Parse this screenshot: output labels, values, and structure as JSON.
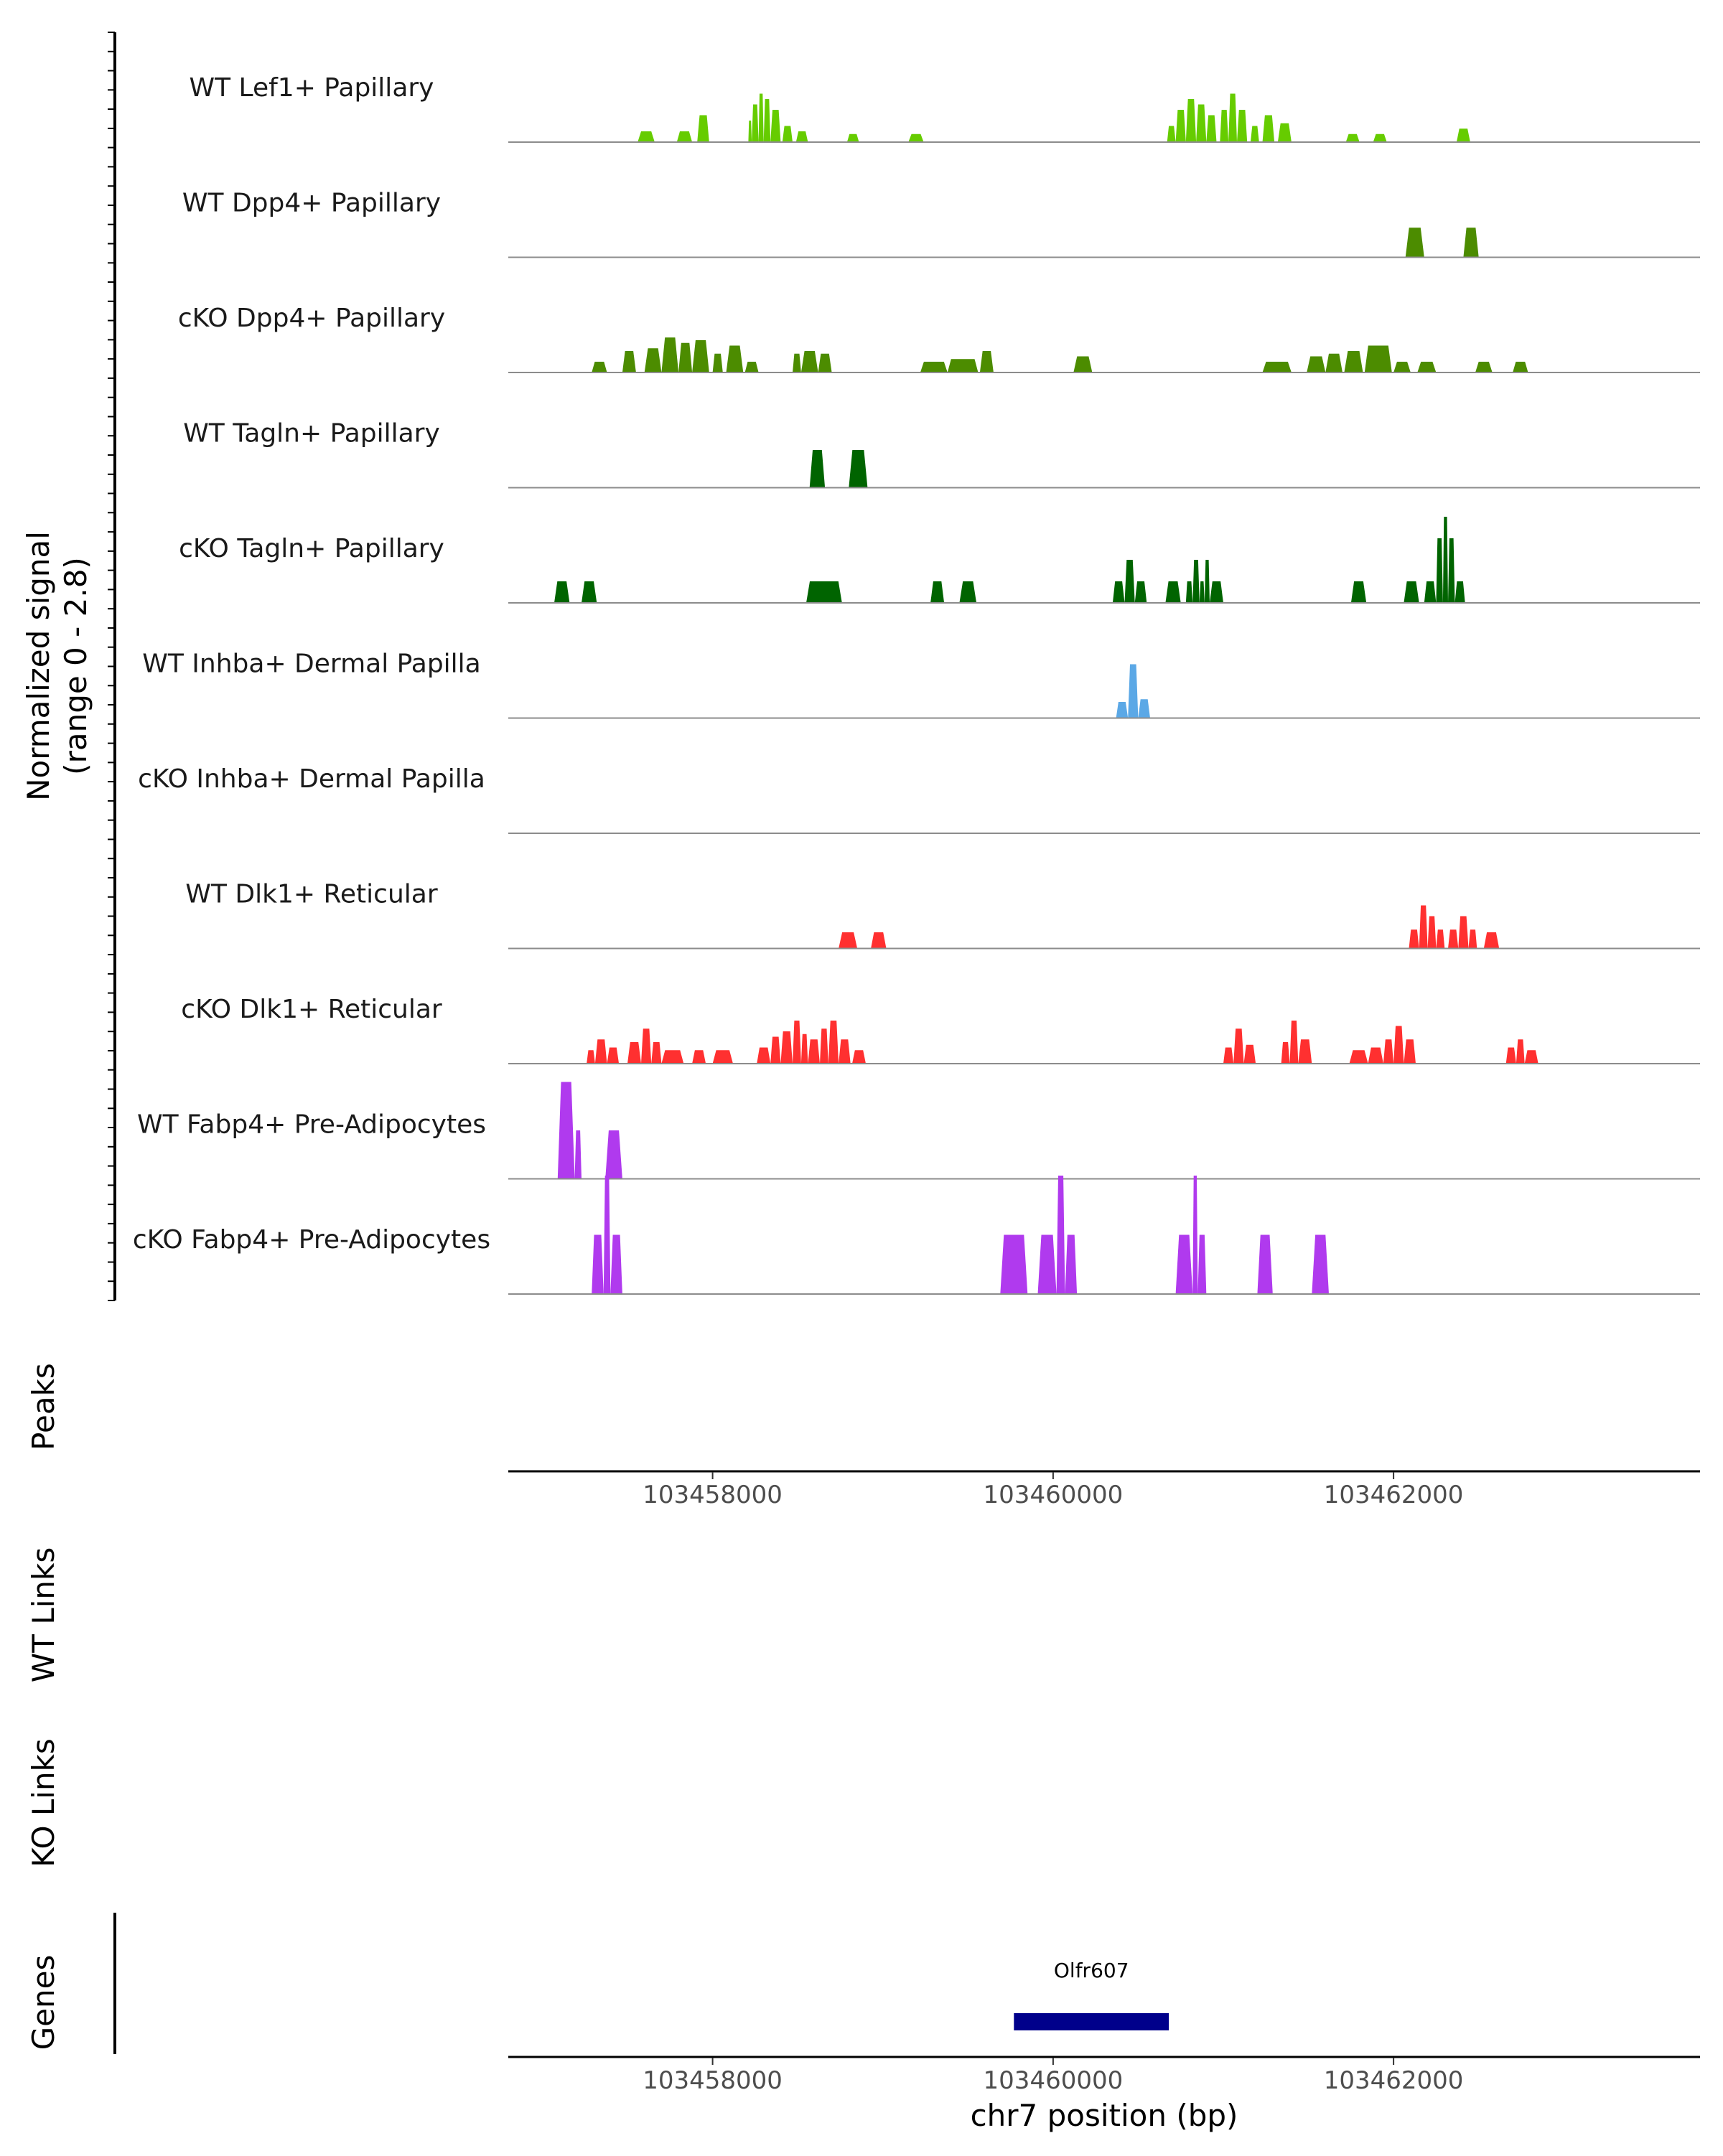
{
  "chart_data": {
    "type": "area",
    "chromosome": "chr7",
    "x_range": [
      103456800,
      103463800
    ],
    "x_ticks": [
      103458000,
      103460000,
      103462000
    ],
    "x_tick_labels": [
      "103458000",
      "103460000",
      "103462000"
    ],
    "xlabel": "chr7 position (bp)",
    "ylabel_line1": "Normalized signal",
    "ylabel_line2": "(range 0 - 2.8)",
    "y_range": [
      0,
      2.8
    ],
    "panel_labels": {
      "peaks": "Peaks",
      "wt_links": "WT Links",
      "ko_links": "KO Links",
      "genes": "Genes"
    },
    "tracks": [
      {
        "name": "WT Lef1+ Papillary",
        "color": "#66CC00",
        "segments": [
          [
            103457560,
            103457660,
            0.2
          ],
          [
            103457790,
            103457880,
            0.2
          ],
          [
            103457910,
            103457980,
            0.5
          ],
          [
            103458210,
            103458230,
            0.4
          ],
          [
            103458230,
            103458270,
            0.7
          ],
          [
            103458270,
            103458300,
            0.9
          ],
          [
            103458300,
            103458340,
            0.8
          ],
          [
            103458340,
            103458400,
            0.6
          ],
          [
            103458410,
            103458470,
            0.3
          ],
          [
            103458490,
            103458560,
            0.2
          ],
          [
            103458790,
            103458860,
            0.15
          ],
          [
            103459150,
            103459240,
            0.15
          ],
          [
            103460670,
            103460720,
            0.3
          ],
          [
            103460720,
            103460780,
            0.6
          ],
          [
            103460780,
            103460840,
            0.8
          ],
          [
            103460840,
            103460900,
            0.7
          ],
          [
            103460900,
            103460960,
            0.5
          ],
          [
            103460980,
            103461030,
            0.6
          ],
          [
            103461030,
            103461080,
            0.9
          ],
          [
            103461080,
            103461140,
            0.6
          ],
          [
            103461160,
            103461210,
            0.3
          ],
          [
            103461230,
            103461300,
            0.5
          ],
          [
            103461320,
            103461400,
            0.35
          ],
          [
            103461720,
            103461800,
            0.15
          ],
          [
            103461880,
            103461960,
            0.15
          ],
          [
            103462370,
            103462450,
            0.25
          ]
        ]
      },
      {
        "name": "WT Dpp4+ Papillary",
        "color": "#4C8C00",
        "segments": [
          [
            103462070,
            103462180,
            0.55
          ],
          [
            103462410,
            103462500,
            0.55
          ]
        ]
      },
      {
        "name": "cKO Dpp4+ Papillary",
        "color": "#4C8C00",
        "segments": [
          [
            103457290,
            103457380,
            0.2
          ],
          [
            103457470,
            103457550,
            0.4
          ],
          [
            103457600,
            103457700,
            0.45
          ],
          [
            103457700,
            103457800,
            0.65
          ],
          [
            103457800,
            103457880,
            0.55
          ],
          [
            103457880,
            103457980,
            0.6
          ],
          [
            103458000,
            103458060,
            0.35
          ],
          [
            103458080,
            103458180,
            0.5
          ],
          [
            103458190,
            103458270,
            0.2
          ],
          [
            103458470,
            103458520,
            0.35
          ],
          [
            103458520,
            103458620,
            0.4
          ],
          [
            103458620,
            103458700,
            0.35
          ],
          [
            103459220,
            103459380,
            0.2
          ],
          [
            103459380,
            103459560,
            0.25
          ],
          [
            103459570,
            103459650,
            0.4
          ],
          [
            103460120,
            103460230,
            0.3
          ],
          [
            103461230,
            103461400,
            0.2
          ],
          [
            103461490,
            103461600,
            0.3
          ],
          [
            103461600,
            103461700,
            0.35
          ],
          [
            103461710,
            103461820,
            0.4
          ],
          [
            103461830,
            103461990,
            0.5
          ],
          [
            103462000,
            103462100,
            0.2
          ],
          [
            103462140,
            103462250,
            0.2
          ],
          [
            103462480,
            103462580,
            0.2
          ],
          [
            103462700,
            103462790,
            0.2
          ]
        ]
      },
      {
        "name": "WT Tagln+ Papillary",
        "color": "#006400",
        "segments": [
          [
            103458570,
            103458660,
            0.7
          ],
          [
            103458800,
            103458910,
            0.7
          ]
        ]
      },
      {
        "name": "cKO Tagln+ Papillary",
        "color": "#006400",
        "segments": [
          [
            103457070,
            103457160,
            0.4
          ],
          [
            103457230,
            103457320,
            0.4
          ],
          [
            103458550,
            103458760,
            0.4
          ],
          [
            103459280,
            103459360,
            0.4
          ],
          [
            103459450,
            103459550,
            0.4
          ],
          [
            103460350,
            103460420,
            0.4
          ],
          [
            103460420,
            103460480,
            0.8
          ],
          [
            103460480,
            103460550,
            0.4
          ],
          [
            103460660,
            103460750,
            0.4
          ],
          [
            103460780,
            103460820,
            0.4
          ],
          [
            103460820,
            103460860,
            0.8
          ],
          [
            103460860,
            103460890,
            0.4
          ],
          [
            103460890,
            103460920,
            0.8
          ],
          [
            103460920,
            103461000,
            0.4
          ],
          [
            103461750,
            103461840,
            0.4
          ],
          [
            103462060,
            103462150,
            0.4
          ],
          [
            103462180,
            103462250,
            0.4
          ],
          [
            103462250,
            103462290,
            1.2
          ],
          [
            103462290,
            103462320,
            1.6
          ],
          [
            103462320,
            103462360,
            1.2
          ],
          [
            103462360,
            103462420,
            0.4
          ]
        ]
      },
      {
        "name": "WT Inhba+ Dermal Papilla",
        "color": "#5BA8E6",
        "segments": [
          [
            103460370,
            103460440,
            0.3
          ],
          [
            103460440,
            103460500,
            1.0
          ],
          [
            103460500,
            103460570,
            0.35
          ]
        ]
      },
      {
        "name": "cKO Inhba+ Dermal Papilla",
        "color": "#5BA8E6",
        "segments": []
      },
      {
        "name": "WT Dlk1+ Reticular",
        "color": "#FF3030",
        "segments": [
          [
            103458740,
            103458850,
            0.3
          ],
          [
            103458930,
            103459020,
            0.3
          ],
          [
            103462090,
            103462150,
            0.35
          ],
          [
            103462150,
            103462200,
            0.8
          ],
          [
            103462200,
            103462250,
            0.6
          ],
          [
            103462250,
            103462300,
            0.35
          ],
          [
            103462320,
            103462380,
            0.35
          ],
          [
            103462380,
            103462440,
            0.6
          ],
          [
            103462440,
            103462490,
            0.35
          ],
          [
            103462530,
            103462620,
            0.3
          ]
        ]
      },
      {
        "name": "cKO Dlk1+ Reticular",
        "color": "#FF3030",
        "segments": [
          [
            103457260,
            103457310,
            0.25
          ],
          [
            103457310,
            103457380,
            0.45
          ],
          [
            103457380,
            103457450,
            0.3
          ],
          [
            103457500,
            103457580,
            0.4
          ],
          [
            103457580,
            103457640,
            0.65
          ],
          [
            103457640,
            103457700,
            0.4
          ],
          [
            103457700,
            103457830,
            0.25
          ],
          [
            103457880,
            103457960,
            0.25
          ],
          [
            103458000,
            103458120,
            0.25
          ],
          [
            103458260,
            103458340,
            0.3
          ],
          [
            103458340,
            103458400,
            0.5
          ],
          [
            103458400,
            103458470,
            0.6
          ],
          [
            103458470,
            103458520,
            0.8
          ],
          [
            103458520,
            103458560,
            0.55
          ],
          [
            103458560,
            103458630,
            0.45
          ],
          [
            103458630,
            103458680,
            0.65
          ],
          [
            103458680,
            103458740,
            0.8
          ],
          [
            103458740,
            103458810,
            0.45
          ],
          [
            103458820,
            103458900,
            0.25
          ],
          [
            103461000,
            103461060,
            0.3
          ],
          [
            103461060,
            103461120,
            0.65
          ],
          [
            103461120,
            103461190,
            0.35
          ],
          [
            103461340,
            103461390,
            0.4
          ],
          [
            103461390,
            103461440,
            0.8
          ],
          [
            103461440,
            103461520,
            0.45
          ],
          [
            103461740,
            103461850,
            0.25
          ],
          [
            103461850,
            103461940,
            0.3
          ],
          [
            103461940,
            103462000,
            0.45
          ],
          [
            103462000,
            103462060,
            0.7
          ],
          [
            103462060,
            103462130,
            0.45
          ],
          [
            103462660,
            103462720,
            0.3
          ],
          [
            103462720,
            103462770,
            0.45
          ],
          [
            103462770,
            103462850,
            0.25
          ]
        ]
      },
      {
        "name": "WT Fabp4+ Pre-Adipocytes",
        "color": "#B03AEE",
        "segments": [
          [
            103457090,
            103457190,
            1.8
          ],
          [
            103457190,
            103457230,
            0.9
          ],
          [
            103457370,
            103457470,
            0.9
          ]
        ]
      },
      {
        "name": "cKO Fabp4+ Pre-Adipocytes",
        "color": "#B03AEE",
        "segments": [
          [
            103457290,
            103457360,
            1.1
          ],
          [
            103457360,
            103457400,
            2.2
          ],
          [
            103457400,
            103457470,
            1.1
          ],
          [
            103459690,
            103459850,
            1.1
          ],
          [
            103459910,
            103460020,
            1.1
          ],
          [
            103460020,
            103460070,
            2.2
          ],
          [
            103460070,
            103460140,
            1.1
          ],
          [
            103460720,
            103460820,
            1.1
          ],
          [
            103460820,
            103460850,
            2.2
          ],
          [
            103460850,
            103460900,
            1.1
          ],
          [
            103461200,
            103461290,
            1.1
          ],
          [
            103461520,
            103461620,
            1.1
          ]
        ]
      }
    ],
    "gene": {
      "name": "Olfr607",
      "start": 103459770,
      "end": 103460680,
      "color": "#00008B"
    }
  }
}
